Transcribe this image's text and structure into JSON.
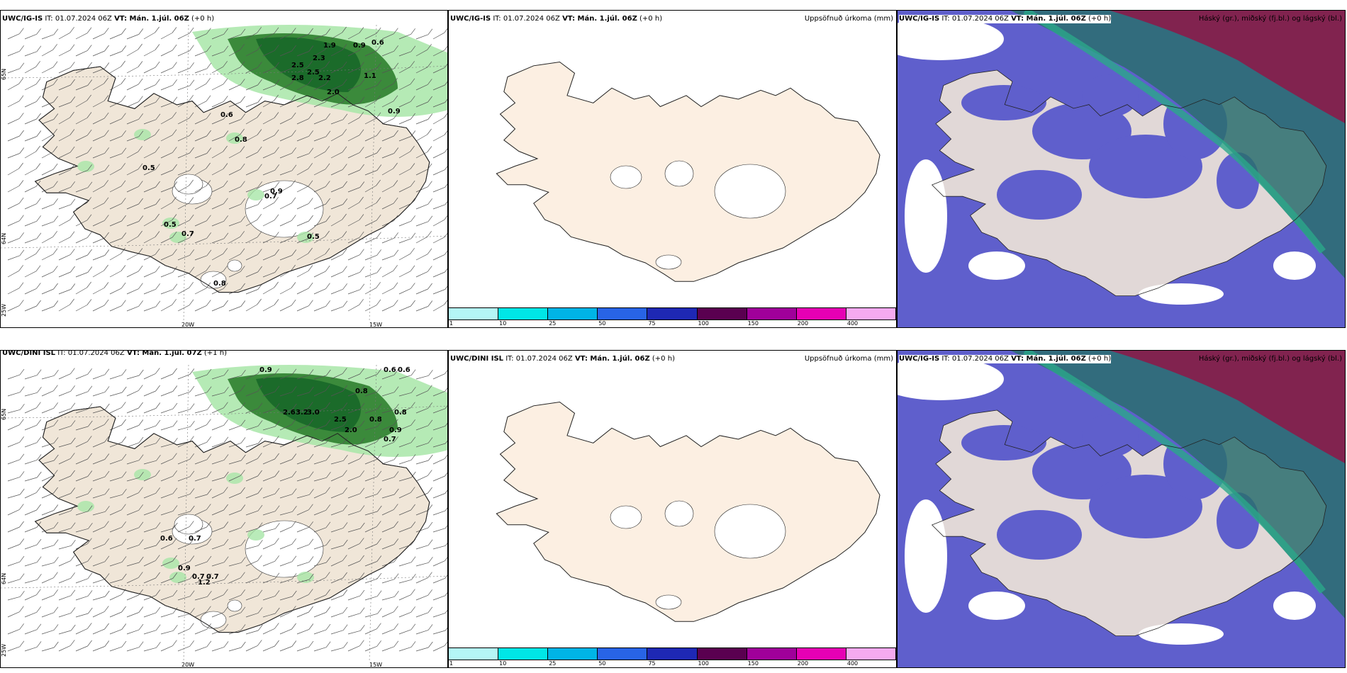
{
  "rows": [
    {
      "model": "UWC/IG-IS",
      "left_title": {
        "model": "UWC/IG-IS",
        "it": "IT: 01.07.2024 06Z",
        "vt": "VT: Mán. 1.júl. 06Z",
        "step": "(+0 h)"
      },
      "mid_title": {
        "model": "UWC/IG-IS",
        "it": "IT: 01.07.2024 06Z",
        "vt": "VT: Mán. 1.júl. 06Z",
        "step": "(+0 h)",
        "right": "Uppsöfnuð úrkoma (mm)"
      },
      "right_title": {
        "model": "UWC/IG-IS",
        "it": "IT: 01.07.2024 06Z",
        "vt": "VT: Mán. 1.júl. 06Z",
        "step": "(+0 h)",
        "right": "Háský (gr.), miðský (fj.bl.) og lágský (bl.)"
      },
      "precip_labels": [
        "1.9",
        "0.9",
        "0.6",
        "2.5",
        "2.3",
        "2.5",
        "2.8",
        "2.2",
        "1.1",
        "2.0",
        "0.9",
        "0.6",
        "0.8",
        "0.5",
        "0.9",
        "0.7",
        "0.5",
        "0.7",
        "0.5",
        "0.8"
      ]
    },
    {
      "model": "UWC/DINI ISL",
      "left_title": {
        "model": "UWC/DINI ISL",
        "it": "IT: 01.07.2024 06Z",
        "vt": "VT: Mán. 1.júl. 07Z",
        "step": "(+1 h)"
      },
      "mid_title": {
        "model": "UWC/DINI ISL",
        "it": "IT: 01.07.2024 06Z",
        "vt": "VT: Mán. 1.júl. 06Z",
        "step": "(+0 h)",
        "right": "Uppsöfnuð úrkoma (mm)"
      },
      "right_title": {
        "model": "UWC/IG-IS",
        "it": "IT: 01.07.2024 06Z",
        "vt": "VT: Mán. 1.júl. 06Z",
        "step": "(+0 h)",
        "right": "Háský (gr.), miðský (fj.bl.) og lágský (bl.)"
      },
      "precip_labels": [
        "0.9",
        "0.6",
        "0.6",
        "0.8",
        "2.6",
        "3.0",
        "3.2",
        "2.5",
        "2.0",
        "0.8",
        "0.8",
        "0.9",
        "0.7",
        "0.6",
        "0.7",
        "0.9",
        "0.7",
        "1.2",
        "0.7"
      ]
    }
  ],
  "axes": {
    "lon_labels": [
      "20W",
      "15W"
    ],
    "lat_labels": [
      "65N",
      "64N"
    ],
    "lon_left": "25W"
  },
  "colorbar": {
    "ticks": [
      "1",
      "10",
      "25",
      "50",
      "75",
      "100",
      "150",
      "200",
      "400"
    ],
    "colors": [
      "#b4f6f6",
      "#00e6e6",
      "#00b4e6",
      "#2864e6",
      "#1e28b4",
      "#5a0050",
      "#a0009a",
      "#e600b4",
      "#f5aaf0"
    ]
  },
  "colors": {
    "land": "#f0e6d8",
    "land_mid": "#fcefe2",
    "precip_dark": "#1b6b2a",
    "precip_light": "#a8e6a8",
    "cloud_low": "#5f5fcc",
    "cloud_high": "#8a1c4a",
    "cloud_mid": "#2aa88a"
  }
}
